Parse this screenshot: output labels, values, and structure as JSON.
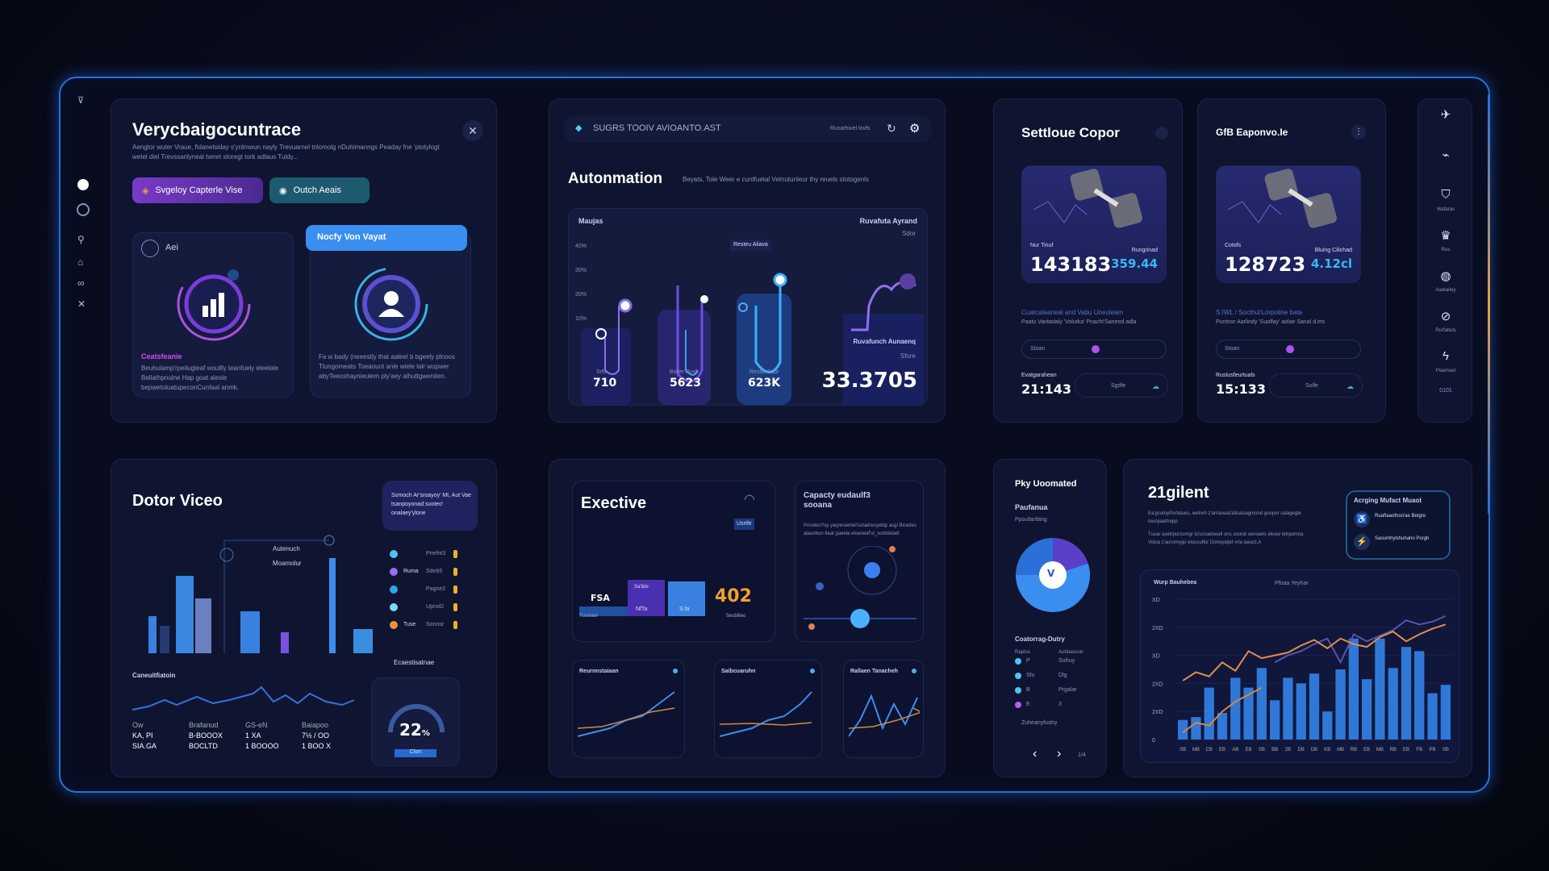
{
  "sidebar": {
    "top": "⊽",
    "icons": [
      "user-circle",
      "target",
      "person",
      "tag",
      "link",
      "tools"
    ]
  },
  "p1": {
    "title": "Verycbaigocuntrace",
    "desc": "Aengtor wuter Vraue, fidanelsiday s'ynlmwun nayly Trevuarnel tnlomolg nDuhimanngs Peaday fne 'ptotylogt wetel diel Trevssanlyneal twnet storegt tork adlaus Tuldy...",
    "btn1": "Svgeloy Capterle Vise",
    "btn2": "Outch Aeais",
    "card1_label": "Aei",
    "card1_sub": "Ceatsfeanie",
    "card1_desc": "Beuhulamp'rpeilugteaf woullly teanfuely eleelale Bellathpnulne Hap goat alesle bepwetoluatupeconCunfaal anmk.",
    "card2_tab": "Nocfy Von Vayat",
    "card2_desc": "Fa w bady (neeestly that aaleel b bgeely plnoos Tlungomeats Toeaount anle wiele lalr wopwer abyTeeoshaynieulem ply'aey alhuttgweniten."
  },
  "p2": {
    "search": "SUGRS TOOIV AVIOANTO.AST",
    "toolbar_text": "Rusarhivel lovfs",
    "title": "Autonmation",
    "subtitle": "Beyats, Tole Weer e cuntfuetal Vetnutunleur thy reuels stotogenls",
    "chart_label": "Maujas",
    "legend_top": "Ruvafuta Ayrand",
    "legend_top_sub": "Sdor",
    "tooltip": "Resteu Aliava",
    "y_ticks": [
      "40%",
      "30%",
      "20%",
      "10%"
    ],
    "cols": [
      {
        "label": "Srfu",
        "value": "710"
      },
      {
        "label": "Boller Rusk",
        "value": "5623"
      },
      {
        "label": "Restlo Suor",
        "value": "623K"
      }
    ],
    "side_label": "Ruvafunch Aunaenq",
    "side_sub": "Sfore",
    "side_value": "33.3705"
  },
  "p3": {
    "title": "Settloue Copor",
    "img_label": "Nur Tinuf",
    "value": "143183",
    "side_label": "Rungrinad",
    "side_value": "359.44",
    "link": "Cuatcateaneal and Vabu Uneuleam",
    "desc": "Paatu Varitadaly 'Volutka' Pnachi'Saneod adla",
    "slider_label": "Stoan",
    "foot_label": "Evatgarahean",
    "foot_value": "21:143",
    "pill": "Sgdfe"
  },
  "p4": {
    "title": "GfB Eaponvo.Ie",
    "img_label": "Cotofs",
    "value": "128723",
    "side_label": "Bluing Cilichad",
    "side_value": "4.12cl",
    "link": "S.IWL / Socthul'Lorpoline bata",
    "desc": "Puntnor Aarlindy 'Suolfay' aolae Sanal d.ets",
    "slider_label": "Stoan",
    "foot_label": "Rustusfeurtuals",
    "foot_value": "15:133",
    "pill": "Solfe"
  },
  "rightbar": {
    "items": [
      {
        "icon": "tool",
        "label": ""
      },
      {
        "icon": "satellite",
        "label": ""
      },
      {
        "icon": "shield",
        "label": "Wafaras"
      },
      {
        "icon": "crown",
        "label": "Rus"
      },
      {
        "icon": "globe",
        "label": "Aaetaitey"
      },
      {
        "icon": "badge",
        "label": "Rurfaltuls"
      },
      {
        "icon": "bolt",
        "label": "Pearnuet"
      }
    ],
    "foot": "0101"
  },
  "p5": {
    "title": "Dotor Viceo",
    "note": "Somoch Ar'sroayoy' Mt, Aut Vae tsanpoyonad suoteo' onalaey'ylone",
    "leg1": "Autenuch",
    "leg2": "Moamolur",
    "list": [
      {
        "label": "",
        "value": "Pnefnt3",
        "color": "#4fc3f7"
      },
      {
        "label": "Ruma",
        "value": "Sdeb5",
        "color": "#9a6cf0"
      },
      {
        "label": "",
        "value": "Pagne2",
        "color": "#29a8f0"
      },
      {
        "label": "",
        "value": "Upnol2",
        "color": "#7fd4f8"
      },
      {
        "label": "Tuse",
        "value": "Sonnsr",
        "color": "#f0903a"
      }
    ],
    "list_foot": "Ecaestisatnae",
    "line_label": "Caneuitfiatoin",
    "stats": [
      [
        "Ow",
        "Brafanud",
        "GS-eN",
        "Baiapoo"
      ],
      [
        "KA, PI",
        "B-BOOOX",
        "1 XA",
        "7½ / OO"
      ],
      [
        "SIA.GA",
        "BOCLTD",
        "1 BOOOO",
        "1 BOO X"
      ]
    ],
    "gauge_value": "22",
    "gauge_unit": "%",
    "gauge_btn": "Clon"
  },
  "p6": {
    "title": "Exective",
    "bar_labels": [
      "FSA",
      "NfTa",
      "S.fa",
      "402"
    ],
    "bar_caps": [
      "Tusulaor",
      "Sa'lide",
      "",
      "Sesbilleo"
    ],
    "flag": "Usrtfe",
    "cap_title": "Capacty eudaulf3 sooana",
    "cap_desc": "Prrudeo'l'uy yaqnnuetriel'sotadrecyettip asgl Bicedes alaunbun tlaat gaeela eloaneaf'ul_sodotetatil",
    "mini": [
      {
        "title": "Reurnnstaiaan"
      },
      {
        "title": "Saibcuaruhn"
      },
      {
        "title": "Rallaen Tanacheh"
      }
    ]
  },
  "p7": {
    "title": "Pky Uoomated",
    "sub": "Paufanua",
    "sub2": "Ppoufanfang",
    "donut_center": "V",
    "sub3": "Coatorrag-Dutry",
    "cols": [
      "Raptus",
      "Autdaoucar"
    ],
    "rows": [
      {
        "c": "#4fc3f7",
        "a": "P",
        "b": "Sufruy"
      },
      {
        "c": "#4fc3f7",
        "a": "Sfu",
        "b": "Dlg"
      },
      {
        "c": "#4fc3f7",
        "a": "B",
        "b": "Prgalar"
      },
      {
        "c": "#b060f0",
        "a": "E",
        "b": "3"
      }
    ],
    "foot": "Zuheanyfuahy",
    "page": "1/4",
    "donut": [
      0.2,
      0.55,
      0.25
    ]
  },
  "p8": {
    "title": "21gilent",
    "desc1": "Ea'gcotoyPortalues, wetreh z'arriaoaal'alloatsagmond goopor salagegle tounpaefnopp",
    "desc2": "Tuuar asetrporzumgr lu'ucoadoeall ons ceorat seroaets eleaw tetrponsta Voloa z'aorumygo elouculfur Donuyatjet vrla laeact.A",
    "card_title": "Acrging Mufact Muaot",
    "card_items": [
      {
        "icon": "runner",
        "text": "Ruaftaaofnoo'ae Betgre"
      },
      {
        "icon": "runner-alt",
        "text": "Saoumhylshuhaho Porgh"
      }
    ],
    "chart_title": "Wurp Bauhebea",
    "chart_legend": "Pfoaa Yeyhar"
  },
  "chart_data": {
    "type": "bar",
    "ylim": [
      0,
      100
    ],
    "y_ticks": [
      "0",
      "2XD",
      "2XD",
      "XD",
      "2XD",
      "XD"
    ],
    "x_ticks": [
      "SB",
      "MB",
      "CB",
      "EB",
      "AB",
      "EB",
      "SB",
      "BB",
      "2B",
      "DB",
      "DB",
      "KB",
      "MB",
      "RB",
      "EB",
      "MB",
      "RB",
      "EB",
      "FB",
      "PB",
      "SB"
    ],
    "values": [
      14,
      16,
      37,
      19,
      44,
      37,
      51,
      28,
      44,
      40,
      47,
      20,
      50,
      72,
      43,
      72,
      51,
      66,
      63,
      33,
      39
    ],
    "series": [
      {
        "color": "#5a52b0",
        "values": [
          null,
          null,
          null,
          null,
          null,
          null,
          null,
          55,
          60,
          63,
          68,
          72,
          55,
          75,
          70,
          74,
          78,
          85,
          82,
          84,
          88
        ]
      },
      {
        "color": "#e0904a",
        "values": [
          42,
          48,
          45,
          55,
          49,
          63,
          58,
          60,
          62,
          67,
          71,
          65,
          72,
          68,
          66,
          73,
          77,
          70,
          75,
          79,
          82
        ]
      },
      {
        "color": "#d08a40",
        "values": [
          5,
          12,
          10,
          20,
          27,
          32,
          37,
          null,
          null,
          null,
          null,
          null,
          null,
          null,
          null,
          null,
          null,
          null,
          null,
          null,
          null
        ]
      }
    ]
  }
}
